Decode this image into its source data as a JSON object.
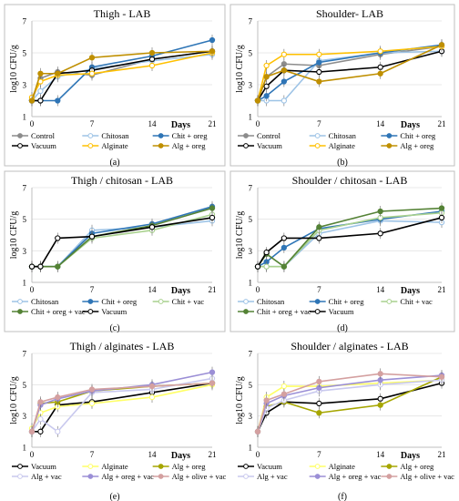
{
  "chart_data": [
    {
      "type": "line",
      "panel_label": "(a)",
      "title": "Thigh - LAB",
      "xlabel": "Days",
      "ylabel": "log10 CFU/g",
      "ylim": [
        1,
        7
      ],
      "x": [
        0,
        1,
        3,
        7,
        14,
        21
      ],
      "xtick_labels": [
        "0",
        "7",
        "14",
        "21"
      ],
      "ytick_labels": [
        "1",
        "3",
        "5",
        "7"
      ],
      "series": [
        {
          "name": "Control",
          "color": "#8c8c8c",
          "marker": "filled",
          "values": [
            2.0,
            3.4,
            3.8,
            3.6,
            4.6,
            5.1
          ]
        },
        {
          "name": "Chitosan",
          "color": "#9dc3e6",
          "marker": "open",
          "values": [
            2.0,
            2.6,
            3.5,
            4.0,
            4.5,
            4.9
          ]
        },
        {
          "name": "Chit + oreg",
          "color": "#2e75b6",
          "marker": "filled",
          "values": [
            2.0,
            2.0,
            2.0,
            4.1,
            4.8,
            5.8
          ]
        },
        {
          "name": "Vacuum",
          "color": "#000000",
          "marker": "open",
          "values": [
            2.0,
            2.0,
            3.7,
            3.9,
            4.6,
            5.1
          ]
        },
        {
          "name": "Alginate",
          "color": "#ffc000",
          "marker": "open",
          "values": [
            2.2,
            3.2,
            3.6,
            3.7,
            4.2,
            5.0
          ]
        },
        {
          "name": "Alg + oreg",
          "color": "#bf8f00",
          "marker": "filled",
          "values": [
            2.0,
            3.7,
            3.7,
            4.7,
            5.0,
            5.1
          ]
        }
      ]
    },
    {
      "type": "line",
      "panel_label": "(b)",
      "title": "Shoulder- LAB",
      "xlabel": "Days",
      "ylabel": "log10 CFU/g",
      "ylim": [
        1,
        7
      ],
      "x": [
        0,
        1,
        3,
        7,
        14,
        21
      ],
      "xtick_labels": [
        "0",
        "7",
        "14",
        "21"
      ],
      "ytick_labels": [
        "1",
        "3",
        "5",
        "7"
      ],
      "series": [
        {
          "name": "Control",
          "color": "#8c8c8c",
          "marker": "filled",
          "values": [
            2.0,
            3.5,
            4.3,
            4.2,
            4.9,
            5.4
          ]
        },
        {
          "name": "Chitosan",
          "color": "#9dc3e6",
          "marker": "open",
          "values": [
            2.0,
            2.0,
            2.0,
            4.5,
            5.0,
            5.1
          ]
        },
        {
          "name": "Chit + oreg",
          "color": "#2e75b6",
          "marker": "filled",
          "values": [
            2.0,
            2.3,
            3.2,
            4.4,
            5.0,
            5.5
          ]
        },
        {
          "name": "Vacuum",
          "color": "#000000",
          "marker": "open",
          "values": [
            2.0,
            2.9,
            3.9,
            3.8,
            4.1,
            5.1
          ]
        },
        {
          "name": "Alginate",
          "color": "#ffc000",
          "marker": "open",
          "values": [
            2.0,
            4.2,
            4.9,
            4.9,
            5.1,
            5.4
          ]
        },
        {
          "name": "Alg + oreg",
          "color": "#bf8f00",
          "marker": "filled",
          "values": [
            2.0,
            3.5,
            3.9,
            3.2,
            3.7,
            5.5
          ]
        }
      ]
    },
    {
      "type": "line",
      "panel_label": "(c)",
      "title": "Thigh / chitosan - LAB",
      "xlabel": "Days",
      "ylabel": "log10 CFU/g",
      "ylim": [
        1,
        7
      ],
      "x": [
        0,
        1,
        3,
        7,
        14,
        21
      ],
      "xtick_labels": [
        "0",
        "7",
        "14",
        "21"
      ],
      "ytick_labels": [
        "1",
        "3",
        "5",
        "7"
      ],
      "series": [
        {
          "name": "Chitosan",
          "color": "#9dc3e6",
          "marker": "open",
          "values": [
            2.0,
            2.0,
            2.0,
            4.3,
            4.5,
            4.9
          ]
        },
        {
          "name": "Chit + oreg",
          "color": "#2e75b6",
          "marker": "filled",
          "values": [
            2.0,
            2.0,
            2.0,
            4.1,
            4.7,
            5.8
          ]
        },
        {
          "name": "Chit + vac",
          "color": "#a9d18e",
          "marker": "open",
          "values": [
            2.0,
            2.0,
            2.0,
            3.8,
            4.3,
            5.3
          ]
        },
        {
          "name": "Chit + oreg + vac",
          "color": "#548235",
          "marker": "filled",
          "values": [
            2.0,
            2.0,
            2.0,
            3.9,
            4.6,
            5.7
          ]
        },
        {
          "name": "Vacuum",
          "color": "#000000",
          "marker": "open",
          "values": [
            2.0,
            2.0,
            3.8,
            3.9,
            4.5,
            5.1
          ]
        }
      ]
    },
    {
      "type": "line",
      "panel_label": "(d)",
      "title": "Shoulder / chitosan - LAB",
      "xlabel": "Days",
      "ylabel": "log10 CFU/g",
      "ylim": [
        1,
        7
      ],
      "x": [
        0,
        1,
        3,
        7,
        14,
        21
      ],
      "xtick_labels": [
        "0",
        "7",
        "14",
        "21"
      ],
      "ytick_labels": [
        "1",
        "3",
        "5",
        "7"
      ],
      "series": [
        {
          "name": "Chitosan",
          "color": "#9dc3e6",
          "marker": "open",
          "values": [
            2.0,
            2.0,
            2.0,
            4.1,
            4.9,
            4.8
          ]
        },
        {
          "name": "Chit + oreg",
          "color": "#2e75b6",
          "marker": "filled",
          "values": [
            2.0,
            2.3,
            3.2,
            4.4,
            5.0,
            5.5
          ]
        },
        {
          "name": "Chit + vac",
          "color": "#a9d18e",
          "marker": "open",
          "values": [
            2.0,
            2.0,
            2.0,
            4.3,
            5.1,
            5.4
          ]
        },
        {
          "name": "Chit + oreg + vac",
          "color": "#548235",
          "marker": "filled",
          "values": [
            2.0,
            2.8,
            2.0,
            4.5,
            5.5,
            5.7
          ]
        },
        {
          "name": "Vacuum",
          "color": "#000000",
          "marker": "open",
          "values": [
            2.0,
            2.9,
            3.8,
            3.8,
            4.1,
            5.1
          ]
        }
      ]
    },
    {
      "type": "line",
      "panel_label": "(e)",
      "title": "Thigh / alginates - LAB",
      "xlabel": "Days",
      "ylabel": "log10 CFU/g",
      "ylim": [
        1,
        7
      ],
      "x": [
        0,
        1,
        3,
        7,
        14,
        21
      ],
      "xtick_labels": [
        "0",
        "7",
        "14",
        "21"
      ],
      "ytick_labels": [
        "1",
        "3",
        "5",
        "7"
      ],
      "series": [
        {
          "name": "Vacuum",
          "color": "#000000",
          "marker": "open",
          "values": [
            2.0,
            2.0,
            3.7,
            3.9,
            4.5,
            5.1
          ]
        },
        {
          "name": "Alginate",
          "color": "#ffff66",
          "marker": "open",
          "values": [
            2.2,
            3.2,
            3.6,
            3.8,
            4.2,
            5.0
          ]
        },
        {
          "name": "Alg + oreg",
          "color": "#a6a600",
          "marker": "filled",
          "values": [
            2.0,
            3.8,
            3.9,
            4.6,
            4.9,
            5.1
          ]
        },
        {
          "name": "Alg + vac",
          "color": "#c9c9ee",
          "marker": "open",
          "values": [
            2.0,
            2.8,
            2.0,
            4.5,
            4.7,
            5.4
          ]
        },
        {
          "name": "Alg + oreg + vac",
          "color": "#9b8fd6",
          "marker": "filled",
          "values": [
            2.0,
            3.7,
            4.1,
            4.6,
            5.0,
            5.8
          ]
        },
        {
          "name": "Alg + olive + vac",
          "color": "#d4a0a0",
          "marker": "filled",
          "values": [
            2.0,
            3.9,
            4.2,
            4.7,
            4.9,
            5.1
          ]
        }
      ]
    },
    {
      "type": "line",
      "panel_label": "(f)",
      "title": "Shoulder / alginates - LAB",
      "xlabel": "Days",
      "ylabel": "log10 CFU/g",
      "ylim": [
        1,
        7
      ],
      "x": [
        0,
        1,
        3,
        7,
        14,
        21
      ],
      "xtick_labels": [
        "0",
        "7",
        "14",
        "21"
      ],
      "ytick_labels": [
        "1",
        "3",
        "5",
        "7"
      ],
      "series": [
        {
          "name": "Vacuum",
          "color": "#000000",
          "marker": "open",
          "values": [
            2.0,
            3.2,
            3.9,
            3.8,
            4.1,
            5.1
          ]
        },
        {
          "name": "Alginate",
          "color": "#ffff66",
          "marker": "open",
          "values": [
            2.0,
            4.2,
            4.9,
            4.9,
            5.1,
            5.3
          ]
        },
        {
          "name": "Alg + oreg",
          "color": "#a6a600",
          "marker": "filled",
          "values": [
            2.0,
            3.6,
            3.9,
            3.2,
            3.7,
            5.5
          ]
        },
        {
          "name": "Alg + vac",
          "color": "#c9c9ee",
          "marker": "open",
          "values": [
            2.0,
            3.5,
            4.0,
            4.6,
            5.0,
            5.3
          ]
        },
        {
          "name": "Alg + oreg + vac",
          "color": "#9b8fd6",
          "marker": "filled",
          "values": [
            2.0,
            3.8,
            4.3,
            4.8,
            5.3,
            5.6
          ]
        },
        {
          "name": "Alg + olive + vac",
          "color": "#d4a0a0",
          "marker": "filled",
          "values": [
            2.0,
            4.0,
            4.4,
            5.2,
            5.7,
            5.5
          ]
        }
      ]
    }
  ]
}
